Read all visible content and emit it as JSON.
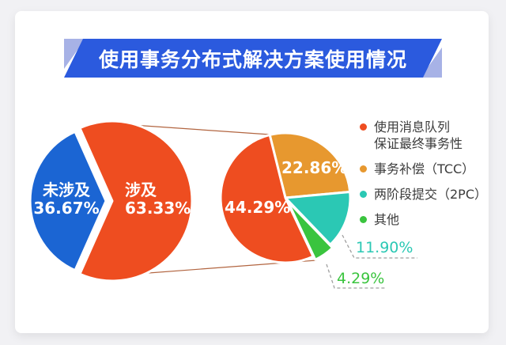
{
  "banner": {
    "title": "使用事务分布式解决方案使用情况",
    "bg_color": "#2b5ade",
    "fold_color": "#a7b2e6"
  },
  "colors": {
    "connector_line": "#b26540",
    "leader_dash": "#9f9f9f",
    "card_bg": "#ffffff"
  },
  "chart_data": [
    {
      "type": "pie",
      "name": "distributed-transaction-involvement",
      "slices": [
        {
          "key": "involved",
          "label": "涉及",
          "value": 63.33,
          "display": "63.33%",
          "color": "#ee4d20"
        },
        {
          "key": "not-involved",
          "label": "未涉及",
          "value": 36.67,
          "display": "36.67%",
          "color": "#1b65d3"
        }
      ]
    },
    {
      "type": "pie",
      "name": "solution-breakdown",
      "slices": [
        {
          "key": "message-queue",
          "label": "使用消息队列保证最终事务性",
          "value": 44.29,
          "display": "44.29%",
          "color": "#ee4d20"
        },
        {
          "key": "tcc",
          "label": "事务补偿（TCC）",
          "value": 22.86,
          "display": "22.86%",
          "color": "#e7982f"
        },
        {
          "key": "2pc",
          "label": "两阶段提交（2PC）",
          "value": 11.9,
          "display": "11.90%",
          "color": "#2bc8b4"
        },
        {
          "key": "other",
          "label": "其他",
          "value": 4.29,
          "display": "4.29%",
          "color": "#3ac43e"
        }
      ],
      "legend": {
        "position": "right",
        "items": [
          {
            "lines": [
              "使用消息队列",
              "保证最终事务性"
            ]
          },
          {
            "lines": [
              "事务补偿（TCC）"
            ]
          },
          {
            "lines": [
              "两阶段提交（2PC）"
            ]
          },
          {
            "lines": [
              "其他"
            ]
          }
        ]
      }
    }
  ]
}
